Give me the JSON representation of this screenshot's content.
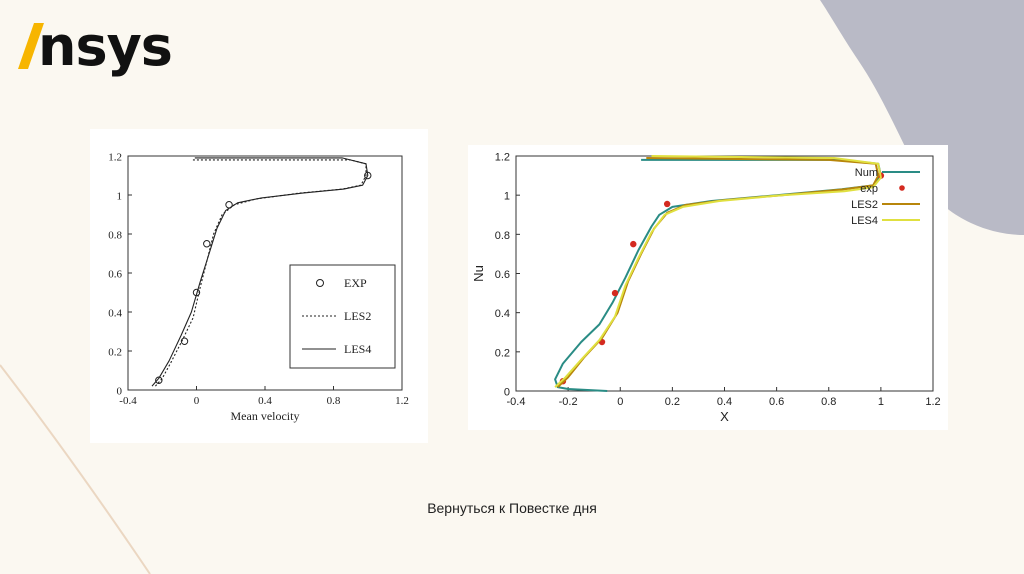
{
  "brand": {
    "name": "nsys",
    "accent": "#f7b500"
  },
  "colors": {
    "background": "#fbf8f1",
    "corner_shape": "#b9bac6",
    "curve_line": "#ebd7c2"
  },
  "charts": [
    {
      "type": "line",
      "xlabel": "Mean velocity",
      "ylabel": "",
      "xlim": [
        -0.4,
        1.2
      ],
      "ylim": [
        0,
        1.2
      ],
      "xticks": [
        "-0.4",
        "0",
        "0.4",
        "0.8",
        "1.2"
      ],
      "yticks": [
        "0",
        "0.2",
        "0.4",
        "0.6",
        "0.8",
        "1",
        "1.2"
      ],
      "grid": false,
      "legend_position": "center-right",
      "series": [
        {
          "name": "EXP",
          "style": "open-circle",
          "color": "#222222",
          "x": [
            -0.22,
            -0.07,
            0.0,
            0.06,
            0.19,
            1.0
          ],
          "y": [
            0.05,
            0.25,
            0.5,
            0.75,
            0.95,
            1.1
          ]
        },
        {
          "name": "LES2",
          "style": "dotted",
          "color": "#222222",
          "x": [
            -0.24,
            -0.2,
            -0.15,
            -0.08,
            -0.02,
            0.02,
            0.06,
            0.1,
            0.15,
            0.22,
            0.35,
            0.6,
            0.85,
            0.96,
            0.99,
            0.99,
            0.9,
            -0.03
          ],
          "y": [
            0.02,
            0.06,
            0.14,
            0.26,
            0.37,
            0.52,
            0.66,
            0.8,
            0.9,
            0.95,
            0.98,
            1.01,
            1.03,
            1.05,
            1.1,
            1.16,
            1.18,
            1.18
          ]
        },
        {
          "name": "LES4",
          "style": "solid",
          "color": "#222222",
          "x": [
            -0.26,
            -0.22,
            -0.16,
            -0.09,
            -0.03,
            0.02,
            0.07,
            0.12,
            0.17,
            0.24,
            0.38,
            0.62,
            0.86,
            0.97,
            1.0,
            0.99,
            0.85,
            -0.01
          ],
          "y": [
            0.02,
            0.06,
            0.15,
            0.28,
            0.4,
            0.55,
            0.69,
            0.83,
            0.92,
            0.96,
            0.985,
            1.01,
            1.03,
            1.05,
            1.1,
            1.16,
            1.19,
            1.19
          ]
        }
      ]
    },
    {
      "type": "line",
      "xlabel": "X",
      "ylabel": "Nu",
      "xlim": [
        -0.4,
        1.2
      ],
      "ylim": [
        0,
        1.2
      ],
      "xticks": [
        "-0.4",
        "-0.2",
        "0",
        "0.2",
        "0.4",
        "0.6",
        "0.8",
        "1",
        "1.2"
      ],
      "yticks": [
        "0",
        "0.2",
        "0.4",
        "0.6",
        "0.8",
        "1",
        "1.2"
      ],
      "grid": false,
      "legend_position": "top-right",
      "series": [
        {
          "name": "Num",
          "style": "solid",
          "color": "#2a8c85",
          "x": [
            -0.05,
            -0.2,
            -0.24,
            -0.25,
            -0.22,
            -0.15,
            -0.08,
            -0.03,
            0.02,
            0.07,
            0.12,
            0.15,
            0.2,
            0.35,
            0.6,
            0.85,
            0.97,
            1.0,
            0.99,
            0.85,
            0.08
          ],
          "y": [
            0.0,
            0.01,
            0.02,
            0.06,
            0.14,
            0.25,
            0.34,
            0.45,
            0.58,
            0.72,
            0.84,
            0.9,
            0.94,
            0.97,
            1.0,
            1.03,
            1.05,
            1.1,
            1.16,
            1.18,
            1.18
          ]
        },
        {
          "name": "exp",
          "style": "dot",
          "color": "#d42a20",
          "x": [
            -0.22,
            -0.07,
            -0.02,
            0.05,
            0.18,
            1.0
          ],
          "y": [
            0.05,
            0.25,
            0.5,
            0.75,
            0.955,
            1.1
          ]
        },
        {
          "name": "LES2",
          "style": "solid",
          "color": "#b8860b",
          "x": [
            -0.24,
            -0.2,
            -0.14,
            -0.07,
            -0.01,
            0.03,
            0.08,
            0.13,
            0.18,
            0.25,
            0.4,
            0.62,
            0.86,
            0.97,
            0.99,
            0.98,
            0.8,
            0.1
          ],
          "y": [
            0.02,
            0.07,
            0.17,
            0.27,
            0.4,
            0.56,
            0.7,
            0.83,
            0.91,
            0.95,
            0.975,
            1.0,
            1.03,
            1.05,
            1.1,
            1.16,
            1.18,
            1.19
          ]
        },
        {
          "name": "LES4",
          "style": "solid",
          "color": "#e0e040",
          "x": [
            -0.25,
            -0.21,
            -0.15,
            -0.08,
            -0.02,
            0.02,
            0.07,
            0.12,
            0.17,
            0.24,
            0.38,
            0.62,
            0.86,
            0.97,
            1.0,
            0.99,
            0.82,
            0.12
          ],
          "y": [
            0.02,
            0.07,
            0.16,
            0.26,
            0.38,
            0.54,
            0.68,
            0.81,
            0.9,
            0.94,
            0.97,
            1.0,
            1.02,
            1.04,
            1.09,
            1.16,
            1.19,
            1.2
          ]
        }
      ]
    }
  ],
  "footer": {
    "link_text": "Вернуться к Повестке дня"
  }
}
